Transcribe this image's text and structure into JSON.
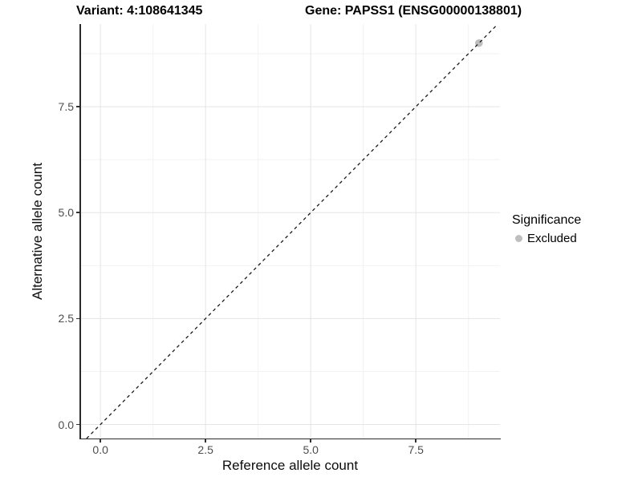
{
  "chart_data": {
    "type": "scatter",
    "title_left": "Variant: 4:108641345",
    "title_right": "Gene: PAPSS1 (ENSG00000138801)",
    "xlabel": "Reference allele count",
    "ylabel": "Alternative allele count",
    "x_range": [
      -0.48,
      9.5
    ],
    "y_range": [
      -0.33,
      9.45
    ],
    "x_ticks": [
      0.0,
      2.5,
      5.0,
      7.5
    ],
    "y_ticks": [
      0.0,
      2.5,
      5.0,
      7.5
    ],
    "x_tick_labels": [
      "0.0",
      "2.5",
      "5.0",
      "7.5"
    ],
    "y_tick_labels": [
      "0.0",
      "2.5",
      "5.0",
      "7.5"
    ],
    "x_minor_ticks": [
      1.25,
      3.75,
      6.25,
      8.75
    ],
    "y_minor_ticks": [
      1.25,
      3.75,
      6.25,
      8.75
    ],
    "grid": true,
    "identity_line": {
      "slope": 1,
      "intercept": 0,
      "style": "dashed",
      "color": "#1a1a1a"
    },
    "series": [
      {
        "name": "Excluded",
        "color": "#bebebe",
        "points": [
          {
            "x": 9,
            "y": 9
          }
        ]
      }
    ],
    "legend": {
      "title": "Significance",
      "position": "right",
      "entries": [
        {
          "label": "Excluded",
          "color": "#bebebe"
        }
      ]
    },
    "colors": {
      "grid_major": "#e5e5e5",
      "grid_minor": "#f2f2f2",
      "axis_line": "#2b2b2b",
      "tick_label": "#4d4d4d",
      "point": "#bebebe"
    }
  }
}
